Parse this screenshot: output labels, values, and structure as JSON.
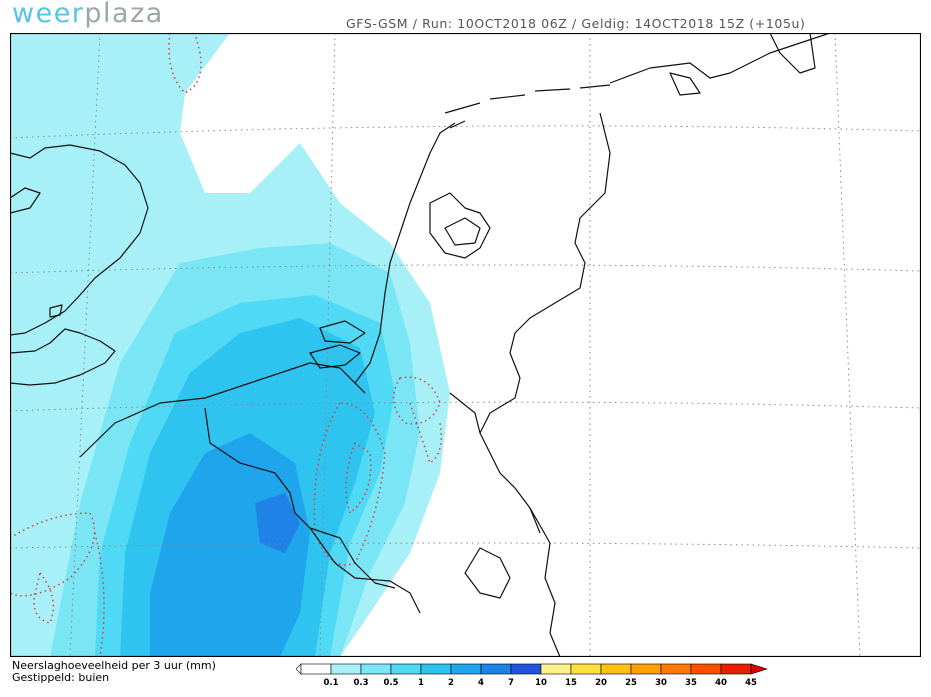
{
  "header": {
    "logo_part1": "weer",
    "logo_part2": "plaza",
    "run_info": "GFS-GSM / Run: 10OCT2018 06Z / Geldig: 14OCT2018 15Z (+105u)"
  },
  "legend": {
    "line1": "Neerslaghoeveelheid per 3 uur (mm)",
    "line2": "Gestippeld: buien",
    "levels": [
      "0.1",
      "0.3",
      "0.5",
      "1",
      "2",
      "4",
      "7",
      "10",
      "15",
      "20",
      "25",
      "30",
      "35",
      "40",
      "45"
    ],
    "colors": [
      "#ffffff",
      "#a7f0f8",
      "#7ae6f5",
      "#4fd9f5",
      "#2fc4f0",
      "#1fa5ec",
      "#1e82e6",
      "#2353dd",
      "#fff28a",
      "#ffe040",
      "#ffc010",
      "#ff9f00",
      "#ff7a00",
      "#ff5000",
      "#e82000"
    ],
    "end_color": "#dd0000"
  }
}
